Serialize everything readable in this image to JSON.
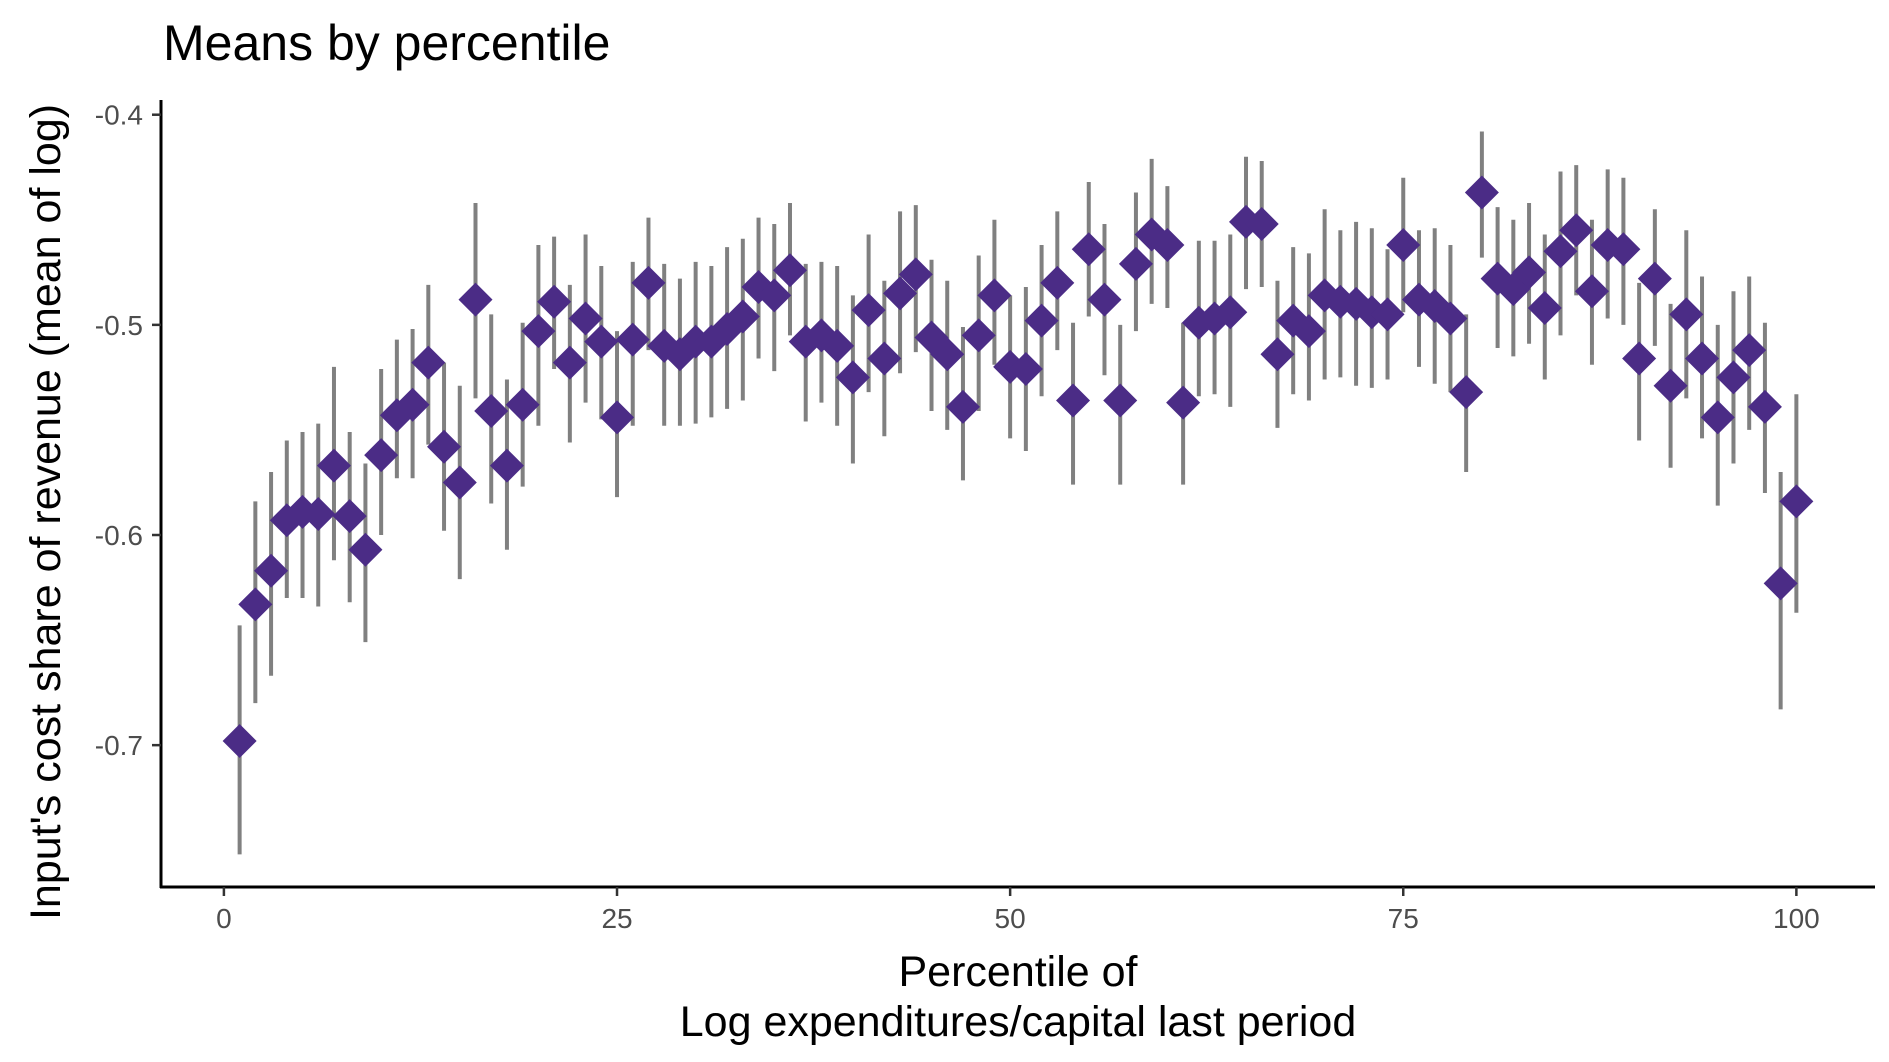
{
  "chart_data": {
    "type": "scatter",
    "title": "Means by percentile",
    "xlabel_lines": [
      "Percentile of",
      "Log expenditures/capital last period"
    ],
    "ylabel": "Input's cost share of revenue (mean of log)",
    "xlim": [
      -4,
      105
    ],
    "ylim": [
      -0.7675,
      -0.393
    ],
    "x_ticks": [
      0,
      25,
      50,
      75,
      100
    ],
    "x_tick_labels": [
      "0",
      "25",
      "50",
      "75",
      "100"
    ],
    "y_ticks": [
      -0.7,
      -0.6,
      -0.5,
      -0.4
    ],
    "y_tick_labels": [
      "-0.7",
      "-0.6",
      "-0.5",
      "-0.4"
    ],
    "grid": false,
    "point_color": "#4b2c86",
    "errorbar_color": "#808080",
    "series": [
      {
        "marker": "diamond",
        "x": [
          1,
          2,
          3,
          4,
          5,
          6,
          7,
          8,
          9,
          10,
          11,
          12,
          13,
          14,
          15,
          16,
          17,
          18,
          19,
          20,
          21,
          22,
          23,
          24,
          25,
          26,
          27,
          28,
          29,
          30,
          31,
          32,
          33,
          34,
          35,
          36,
          37,
          38,
          39,
          40,
          41,
          42,
          43,
          44,
          45,
          46,
          47,
          48,
          49,
          50,
          51,
          52,
          53,
          54,
          55,
          56,
          57,
          58,
          59,
          60,
          61,
          62,
          63,
          64,
          65,
          66,
          67,
          68,
          69,
          70,
          71,
          72,
          73,
          74,
          75,
          76,
          77,
          78,
          79,
          80,
          81,
          82,
          83,
          84,
          85,
          86,
          87,
          88,
          89,
          90,
          91,
          92,
          93,
          94,
          95,
          96,
          97,
          98,
          99,
          100
        ],
        "y": [
          -0.698,
          -0.633,
          -0.617,
          -0.593,
          -0.589,
          -0.59,
          -0.567,
          -0.591,
          -0.607,
          -0.562,
          -0.543,
          -0.538,
          -0.518,
          -0.558,
          -0.575,
          -0.488,
          -0.541,
          -0.567,
          -0.538,
          -0.503,
          -0.489,
          -0.518,
          -0.497,
          -0.508,
          -0.544,
          -0.507,
          -0.48,
          -0.51,
          -0.514,
          -0.508,
          -0.508,
          -0.502,
          -0.496,
          -0.482,
          -0.486,
          -0.474,
          -0.508,
          -0.505,
          -0.51,
          -0.525,
          -0.493,
          -0.516,
          -0.485,
          -0.476,
          -0.506,
          -0.514,
          -0.539,
          -0.505,
          -0.486,
          -0.52,
          -0.521,
          -0.498,
          -0.48,
          -0.536,
          -0.464,
          -0.488,
          -0.536,
          -0.471,
          -0.457,
          -0.462,
          -0.537,
          -0.499,
          -0.497,
          -0.494,
          -0.451,
          -0.452,
          -0.514,
          -0.498,
          -0.503,
          -0.486,
          -0.489,
          -0.49,
          -0.494,
          -0.495,
          -0.462,
          -0.488,
          -0.491,
          -0.497,
          -0.532,
          -0.437,
          -0.478,
          -0.483,
          -0.475,
          -0.492,
          -0.465,
          -0.455,
          -0.484,
          -0.462,
          -0.464,
          -0.516,
          -0.478,
          -0.529,
          -0.495,
          -0.516,
          -0.544,
          -0.525,
          -0.512,
          -0.539,
          -0.623,
          -0.584
        ],
        "y_lower": [
          -0.752,
          -0.68,
          -0.667,
          -0.63,
          -0.63,
          -0.634,
          -0.612,
          -0.632,
          -0.651,
          -0.6,
          -0.573,
          -0.573,
          -0.557,
          -0.598,
          -0.621,
          -0.535,
          -0.585,
          -0.607,
          -0.577,
          -0.548,
          -0.521,
          -0.556,
          -0.537,
          -0.545,
          -0.582,
          -0.548,
          -0.512,
          -0.548,
          -0.548,
          -0.547,
          -0.544,
          -0.54,
          -0.536,
          -0.516,
          -0.522,
          -0.505,
          -0.546,
          -0.537,
          -0.548,
          -0.566,
          -0.532,
          -0.553,
          -0.523,
          -0.513,
          -0.541,
          -0.55,
          -0.574,
          -0.541,
          -0.519,
          -0.554,
          -0.56,
          -0.534,
          -0.512,
          -0.576,
          -0.496,
          -0.524,
          -0.576,
          -0.503,
          -0.49,
          -0.492,
          -0.576,
          -0.534,
          -0.533,
          -0.539,
          -0.483,
          -0.482,
          -0.549,
          -0.533,
          -0.536,
          -0.526,
          -0.525,
          -0.529,
          -0.53,
          -0.526,
          -0.494,
          -0.52,
          -0.528,
          -0.532,
          -0.57,
          -0.468,
          -0.511,
          -0.515,
          -0.509,
          -0.526,
          -0.505,
          -0.486,
          -0.519,
          -0.497,
          -0.5,
          -0.555,
          -0.51,
          -0.568,
          -0.535,
          -0.554,
          -0.586,
          -0.566,
          -0.55,
          -0.58,
          -0.683,
          -0.637
        ],
        "y_upper": [
          -0.643,
          -0.584,
          -0.57,
          -0.555,
          -0.551,
          -0.547,
          -0.52,
          -0.551,
          -0.566,
          -0.521,
          -0.507,
          -0.502,
          -0.481,
          -0.518,
          -0.529,
          -0.442,
          -0.495,
          -0.526,
          -0.499,
          -0.462,
          -0.458,
          -0.481,
          -0.457,
          -0.472,
          -0.503,
          -0.47,
          -0.449,
          -0.471,
          -0.478,
          -0.47,
          -0.472,
          -0.463,
          -0.459,
          -0.449,
          -0.452,
          -0.442,
          -0.471,
          -0.47,
          -0.472,
          -0.486,
          -0.457,
          -0.479,
          -0.446,
          -0.443,
          -0.469,
          -0.479,
          -0.501,
          -0.467,
          -0.45,
          -0.486,
          -0.482,
          -0.462,
          -0.446,
          -0.499,
          -0.432,
          -0.452,
          -0.5,
          -0.437,
          -0.421,
          -0.434,
          -0.499,
          -0.46,
          -0.46,
          -0.457,
          -0.42,
          -0.422,
          -0.479,
          -0.463,
          -0.466,
          -0.445,
          -0.455,
          -0.451,
          -0.454,
          -0.464,
          -0.43,
          -0.455,
          -0.454,
          -0.462,
          -0.495,
          -0.408,
          -0.444,
          -0.45,
          -0.442,
          -0.457,
          -0.427,
          -0.424,
          -0.45,
          -0.426,
          -0.43,
          -0.48,
          -0.445,
          -0.49,
          -0.455,
          -0.477,
          -0.5,
          -0.484,
          -0.477,
          -0.499,
          -0.57,
          -0.533
        ]
      }
    ]
  }
}
